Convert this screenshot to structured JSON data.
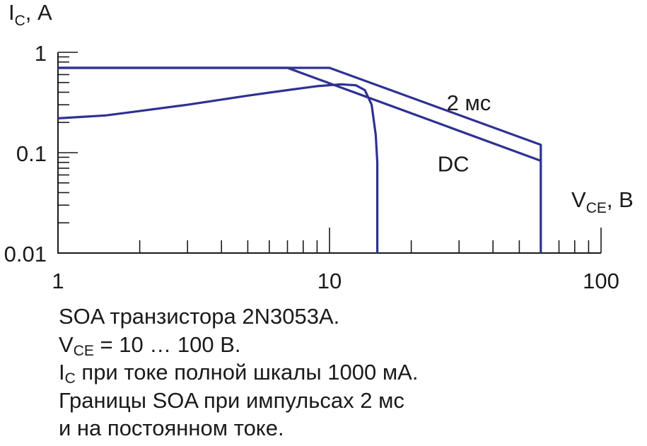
{
  "chart_data": {
    "type": "line",
    "x_scale": "log",
    "y_scale": "log",
    "xlim": [
      1,
      100
    ],
    "ylim": [
      0.01,
      1
    ],
    "x_ticks": [
      1,
      10,
      100
    ],
    "x_tick_labels": [
      "1",
      "10",
      "100"
    ],
    "y_ticks": [
      0.01,
      0.1,
      1
    ],
    "y_tick_labels": [
      "0.01",
      "0.1",
      "1"
    ],
    "x_axis": {
      "main": "V",
      "sub": "CE",
      "unit": ", В"
    },
    "y_axis": {
      "main": "I",
      "sub": "C",
      "unit": ", А"
    },
    "grid": false,
    "series": [
      {
        "name": "2 мс",
        "points": [
          [
            1,
            0.7
          ],
          [
            10,
            0.7
          ],
          [
            60,
            0.12
          ],
          [
            60,
            0.01
          ]
        ]
      },
      {
        "name": "DC",
        "points": [
          [
            1,
            0.7
          ],
          [
            7,
            0.7
          ],
          [
            60,
            0.083
          ]
        ]
      },
      {
        "name": "",
        "points": [
          [
            1,
            0.22
          ],
          [
            1.5,
            0.235
          ],
          [
            2,
            0.26
          ],
          [
            3,
            0.3
          ],
          [
            5,
            0.37
          ],
          [
            7,
            0.42
          ],
          [
            9,
            0.46
          ],
          [
            11,
            0.48
          ],
          [
            12.5,
            0.47
          ],
          [
            13.5,
            0.42
          ],
          [
            14.3,
            0.3
          ],
          [
            14.8,
            0.15
          ],
          [
            15,
            0.08
          ],
          [
            15,
            0.01
          ]
        ]
      }
    ],
    "annotations": [
      {
        "text": "2 мс",
        "x": 27,
        "y": 0.265
      },
      {
        "text": "DC",
        "x": 25,
        "y": 0.065
      }
    ]
  },
  "caption": {
    "line1": "SOA транзистора 2N3053A.",
    "line2_main": "V",
    "line2_sub": "CE",
    "line2_rest": " = 10 … 100 В.",
    "line3_main": "I",
    "line3_sub": "C",
    "line3_rest": " при токе полной шкалы 1000 мА.",
    "line4": "Границы SOA при импульсах 2 мс",
    "line5": "и на постоянном токе."
  },
  "colors": {
    "curve": "#2e3192",
    "axis": "#1a1a1a"
  }
}
